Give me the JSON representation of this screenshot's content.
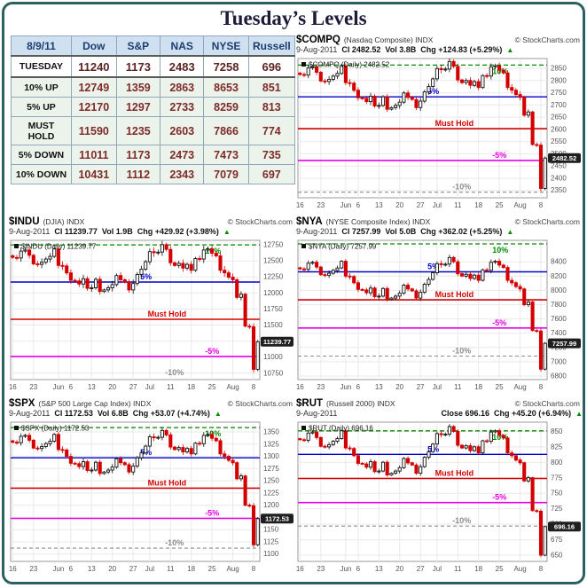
{
  "title": "Tuesday’s Levels",
  "credit": "© StockCharts.com",
  "icons": {
    "up_arrow": "▲",
    "legend_marker": "■"
  },
  "table": {
    "headers": [
      "8/9/11",
      "Dow",
      "S&P",
      "NAS",
      "NYSE",
      "Russell"
    ],
    "rows": [
      {
        "label": "TUESDAY",
        "values": [
          "11240",
          "1173",
          "2483",
          "7258",
          "696"
        ]
      },
      {
        "label": "10% UP",
        "values": [
          "12749",
          "1359",
          "2863",
          "8653",
          "851"
        ]
      },
      {
        "label": "5% UP",
        "values": [
          "12170",
          "1297",
          "2733",
          "8259",
          "813"
        ]
      },
      {
        "label": "MUST HOLD",
        "values": [
          "11590",
          "1235",
          "2603",
          "7866",
          "774"
        ]
      },
      {
        "label": "5% DOWN",
        "values": [
          "11011",
          "1173",
          "2473",
          "7473",
          "735"
        ]
      },
      {
        "label": "10% DOWN",
        "values": [
          "10431",
          "1112",
          "2343",
          "7079",
          "697"
        ]
      }
    ]
  },
  "shape": {
    "base_range": [
      1119,
      1353
    ],
    "base_series": [
      1329,
      1328,
      1341,
      1343,
      1333,
      1317,
      1316,
      1320,
      1326,
      1331,
      1345,
      1314,
      1313,
      1300,
      1286,
      1285,
      1279,
      1289,
      1271,
      1272,
      1288,
      1265,
      1268,
      1272,
      1278,
      1295,
      1287,
      1283,
      1268,
      1280,
      1297,
      1307,
      1321,
      1340,
      1338,
      1339,
      1353,
      1344,
      1319,
      1314,
      1318,
      1309,
      1316,
      1305,
      1327,
      1326,
      1343,
      1345,
      1337,
      1332,
      1305,
      1300,
      1292,
      1287,
      1254,
      1260,
      1200,
      1199,
      1119,
      1172.53
    ],
    "xtick_idx": [
      0,
      5,
      11,
      14,
      19,
      24,
      29,
      33,
      38,
      43,
      48,
      53,
      58
    ],
    "xtick_labels": [
      "16",
      "23",
      "Jun",
      "6",
      "13",
      "20",
      "27",
      "Jul",
      "11",
      "18",
      "25",
      "Aug",
      "8"
    ]
  },
  "level_styles": [
    {
      "key": "up10",
      "label": "10%",
      "color": "#008a00",
      "dash": "5,3",
      "width": 1.3,
      "lx": 0.78
    },
    {
      "key": "up5",
      "label": "5%",
      "color": "#0000cc",
      "dash": "",
      "width": 1.4,
      "lx": 0.52
    },
    {
      "key": "hold",
      "label": "Must Hold",
      "color": "#d40000",
      "dash": "",
      "width": 1.6,
      "lx": 0.55
    },
    {
      "key": "down5",
      "label": "-5%",
      "color": "#e800e8",
      "dash": "",
      "width": 1.6,
      "lx": 0.78
    },
    {
      "key": "down10",
      "label": "-10%",
      "color": "#8c8c8c",
      "dash": "4,3",
      "width": 1.1,
      "lx": 0.62
    }
  ],
  "colors": {
    "up_candle": "#111111",
    "down_candle": "#d40000",
    "grid": "#e9e9e9",
    "axis_text": "#555555",
    "plot_border": "#999999",
    "price_box_bg": "#1f1f1f",
    "price_box_text": "#ffffff",
    "arrow_up": "#008a00",
    "legend_text": "#111111"
  },
  "chart_data": [
    {
      "type": "candlestick",
      "symbol": "$COMPQ",
      "desc": "(Nasdaq Composite) INDX",
      "date": "9-Aug-2011",
      "cl": "Cl 2482.52",
      "vol": "Vol 3.8B",
      "chg": "Chg +124.83 (+5.29%)",
      "legend": "$COMPQ (Daily) 2482.52",
      "close": 2482.52,
      "price_box": "2482.52",
      "ymin": 2320,
      "ymax": 2890,
      "yticks": [
        2350,
        2400,
        2450,
        2500,
        2550,
        2600,
        2650,
        2700,
        2750,
        2800,
        2850
      ],
      "levels": {
        "up10": 2863,
        "up5": 2733,
        "hold": 2603,
        "down5": 2473,
        "down10": 2343
      },
      "series_range": [
        2358,
        2878
      ]
    },
    {
      "type": "candlestick",
      "symbol": "$INDU",
      "desc": "(DJIA) INDX",
      "date": "9-Aug-2011",
      "cl": "Cl 11239.77",
      "vol": "Vol 1.9B",
      "chg": "Chg +429.92 (+3.98%)",
      "legend": "$INDU (Daily) 11239.77",
      "close": 11239.77,
      "price_box": "11239.77",
      "ymin": 10650,
      "ymax": 12820,
      "yticks": [
        10750,
        11000,
        11250,
        11500,
        11750,
        12000,
        12250,
        12500,
        12750
      ],
      "levels": {
        "up10": 12749,
        "up5": 12170,
        "hold": 11590,
        "down5": 11011,
        "down10": 10431
      },
      "series_range": [
        10810,
        12753
      ]
    },
    {
      "type": "candlestick",
      "symbol": "$NYA",
      "desc": "(NYSE Composite Index) INDX",
      "date": "9-Aug-2011",
      "cl": "Cl 7257.99",
      "vol": "Vol 5.0B",
      "chg": "Chg +362.02 (+5.25%)",
      "legend": "$NYA (Daily) 7257.99",
      "close": 7257.99,
      "price_box": "7257.99",
      "ymin": 6750,
      "ymax": 8700,
      "yticks": [
        6800,
        7000,
        7200,
        7400,
        7600,
        7800,
        8000,
        8200,
        8400
      ],
      "levels": {
        "up10": 8653,
        "up5": 8259,
        "hold": 7866,
        "down5": 7473,
        "down10": 7079
      },
      "series_range": [
        6896,
        8460
      ]
    },
    {
      "type": "candlestick",
      "symbol": "$SPX",
      "desc": "(S&P 500 Large Cap Index) INDX",
      "date": "9-Aug-2011",
      "cl": "Cl 1172.53",
      "vol": "Vol 6.8B",
      "chg": "Chg +53.07 (+4.74%)",
      "legend": "$SPX (Daily) 1172.53",
      "close": 1172.53,
      "price_box": "1172.53",
      "ymin": 1085,
      "ymax": 1370,
      "yticks": [
        1100,
        1125,
        1150,
        1175,
        1200,
        1225,
        1250,
        1275,
        1300,
        1325,
        1350
      ],
      "levels": {
        "up10": 1359,
        "up5": 1297,
        "hold": 1235,
        "down5": 1173,
        "down10": 1112
      },
      "series_range": [
        1119,
        1353
      ]
    },
    {
      "type": "candlestick",
      "symbol": "$RUT",
      "desc": "(Russell 2000) INDX",
      "date": "9-Aug-2011",
      "cl": "Close 696.16",
      "vol": "",
      "chg": "Chg +45.20 (+6.94%)",
      "legend": "$RUT (Daily) 696.16",
      "close": 696.16,
      "price_box": "696.16",
      "ymin": 640,
      "ymax": 865,
      "yticks": [
        650,
        675,
        700,
        725,
        750,
        775,
        800,
        825,
        850
      ],
      "levels": {
        "up10": 851,
        "up5": 813,
        "hold": 774,
        "down5": 735,
        "down10": 697
      },
      "series_range": [
        650,
        858
      ]
    }
  ]
}
